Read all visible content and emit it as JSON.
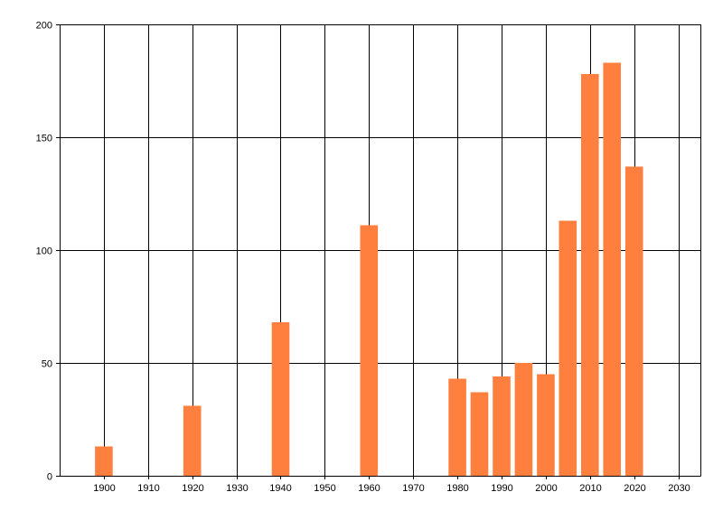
{
  "chart_data": {
    "type": "bar",
    "title": "",
    "xlabel": "",
    "ylabel": "",
    "x": [
      1900,
      1920,
      1940,
      1960,
      1980,
      1985,
      1990,
      1995,
      2000,
      2005,
      2010,
      2015,
      2020
    ],
    "values": [
      13,
      31,
      68,
      111,
      43,
      37,
      44,
      50,
      45,
      113,
      178,
      183,
      137
    ],
    "xlim": [
      1890,
      2035
    ],
    "ylim": [
      0,
      200
    ],
    "x_ticks": [
      1900,
      1910,
      1920,
      1930,
      1940,
      1950,
      1960,
      1970,
      1980,
      1990,
      2000,
      2010,
      2020,
      2030
    ],
    "y_ticks": [
      0,
      50,
      100,
      150,
      200
    ],
    "grid": true,
    "legend": "none",
    "bar_color": "#ff7f3f",
    "grid_color": "#000000"
  }
}
